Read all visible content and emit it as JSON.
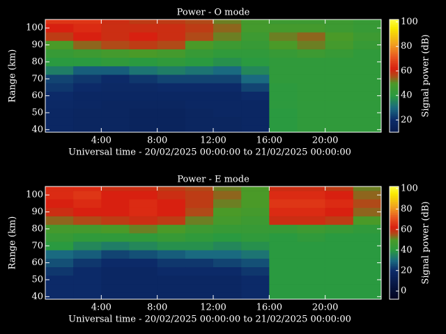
{
  "chart_data": [
    {
      "type": "heatmap",
      "title": "Power - O mode",
      "xlabel": "Universal time - 20/02/2025 00:00:00 to 21/02/2025 00:00:00",
      "ylabel": "Range (km)",
      "colorbar_label": "Signal power (dB)",
      "x_bins": [
        0,
        2,
        4,
        6,
        8,
        10,
        12,
        14,
        16,
        18,
        20,
        22,
        24
      ],
      "y_bins": [
        38.5,
        42.5,
        47.5,
        52.5,
        57.5,
        62.5,
        67.5,
        72.5,
        77.5,
        82.5,
        87.5,
        92.5,
        97.5,
        102.5,
        105
      ],
      "xlim": [
        0,
        24
      ],
      "ylim": [
        38.5,
        105
      ],
      "xticks": [
        {
          "value": 4,
          "label": "4:00"
        },
        {
          "value": 8,
          "label": "8:00"
        },
        {
          "value": 12,
          "label": "12:00"
        },
        {
          "value": 16,
          "label": "16:00"
        },
        {
          "value": 20,
          "label": "20:00"
        }
      ],
      "yticks": [
        40,
        50,
        60,
        70,
        80,
        90,
        100
      ],
      "zlim": [
        10,
        102
      ],
      "zticks": [
        20,
        40,
        60,
        80,
        100
      ],
      "colorscale": [
        [
          -10,
          "#000018"
        ],
        [
          20,
          "#0c2a68"
        ],
        [
          30,
          "#1a6a80"
        ],
        [
          40,
          "#2a9a40"
        ],
        [
          50,
          "#4a9a28"
        ],
        [
          56,
          "#b04a18"
        ],
        [
          62,
          "#d82010"
        ],
        [
          72,
          "#e85820"
        ],
        [
          82,
          "#f0a020"
        ],
        [
          95,
          "#f8e800"
        ],
        [
          102,
          "#ffff40"
        ]
      ],
      "values": [
        [
          18,
          17,
          17,
          16,
          16,
          17,
          17,
          18,
          40,
          42,
          42,
          42
        ],
        [
          18,
          17,
          17,
          16,
          16,
          17,
          17,
          18,
          40,
          42,
          42,
          42
        ],
        [
          18,
          17,
          17,
          16,
          16,
          17,
          18,
          18,
          40,
          42,
          42,
          42
        ],
        [
          19,
          18,
          17,
          17,
          17,
          18,
          18,
          18,
          41,
          42,
          42,
          42
        ],
        [
          20,
          18,
          18,
          18,
          18,
          18,
          18,
          20,
          41,
          42,
          42,
          42
        ],
        [
          22,
          20,
          19,
          19,
          20,
          20,
          20,
          24,
          41,
          42,
          42,
          42
        ],
        [
          24,
          22,
          20,
          22,
          24,
          24,
          24,
          30,
          42,
          42,
          42,
          42
        ],
        [
          34,
          28,
          28,
          32,
          34,
          32,
          30,
          36,
          42,
          42,
          42,
          42
        ],
        [
          40,
          40,
          42,
          40,
          42,
          40,
          38,
          40,
          42,
          42,
          42,
          42
        ],
        [
          44,
          46,
          48,
          50,
          48,
          44,
          42,
          42,
          44,
          46,
          44,
          42
        ],
        [
          50,
          54,
          56,
          58,
          56,
          50,
          46,
          44,
          50,
          52,
          48,
          44
        ],
        [
          58,
          62,
          60,
          62,
          60,
          56,
          52,
          46,
          52,
          54,
          50,
          46
        ],
        [
          62,
          64,
          60,
          60,
          60,
          58,
          54,
          48,
          48,
          48,
          46,
          44
        ],
        [
          66,
          66,
          60,
          58,
          58,
          56,
          52,
          48,
          46,
          46,
          46,
          44
        ]
      ]
    },
    {
      "type": "heatmap",
      "title": "Power - E mode",
      "xlabel": "Universal time - 20/02/2025 00:00:00 to 21/02/2025 00:00:00",
      "ylabel": "Range (km)",
      "colorbar_label": "Signal power (dB)",
      "x_bins": [
        0,
        2,
        4,
        6,
        8,
        10,
        12,
        14,
        16,
        18,
        20,
        22,
        24
      ],
      "y_bins": [
        38.5,
        42.5,
        47.5,
        52.5,
        57.5,
        62.5,
        67.5,
        72.5,
        77.5,
        82.5,
        87.5,
        92.5,
        97.5,
        102.5,
        105
      ],
      "xlim": [
        0,
        24
      ],
      "ylim": [
        38.5,
        105
      ],
      "xticks": [
        {
          "value": 4,
          "label": "4:00"
        },
        {
          "value": 8,
          "label": "8:00"
        },
        {
          "value": 12,
          "label": "12:00"
        },
        {
          "value": 16,
          "label": "16:00"
        },
        {
          "value": 20,
          "label": "20:00"
        }
      ],
      "yticks": [
        40,
        50,
        60,
        70,
        80,
        90,
        100
      ],
      "zlim": [
        -8,
        102
      ],
      "zticks": [
        0,
        20,
        40,
        60,
        80,
        100
      ],
      "colorscale": [
        [
          -10,
          "#000018"
        ],
        [
          20,
          "#0c2a68"
        ],
        [
          30,
          "#1a6a80"
        ],
        [
          40,
          "#2a9a40"
        ],
        [
          50,
          "#4a9a28"
        ],
        [
          56,
          "#b04a18"
        ],
        [
          62,
          "#d82010"
        ],
        [
          72,
          "#e85820"
        ],
        [
          82,
          "#f0a020"
        ],
        [
          95,
          "#f8e800"
        ],
        [
          102,
          "#ffff40"
        ]
      ],
      "values": [
        [
          20,
          20,
          18,
          18,
          18,
          18,
          18,
          20,
          40,
          40,
          40,
          40
        ],
        [
          20,
          20,
          18,
          18,
          18,
          18,
          18,
          20,
          40,
          40,
          40,
          40
        ],
        [
          20,
          20,
          18,
          18,
          18,
          18,
          18,
          20,
          40,
          40,
          40,
          40
        ],
        [
          22,
          20,
          18,
          18,
          20,
          20,
          20,
          22,
          40,
          40,
          40,
          40
        ],
        [
          26,
          22,
          20,
          20,
          22,
          22,
          24,
          26,
          40,
          40,
          40,
          40
        ],
        [
          30,
          28,
          24,
          26,
          28,
          30,
          30,
          32,
          40,
          40,
          40,
          40
        ],
        [
          40,
          36,
          34,
          36,
          38,
          38,
          36,
          38,
          40,
          40,
          40,
          40
        ],
        [
          44,
          42,
          42,
          42,
          44,
          42,
          40,
          42,
          40,
          42,
          40,
          40
        ],
        [
          48,
          48,
          50,
          52,
          50,
          46,
          44,
          44,
          44,
          46,
          44,
          42
        ],
        [
          54,
          56,
          58,
          60,
          58,
          52,
          48,
          46,
          60,
          60,
          58,
          50
        ],
        [
          60,
          62,
          62,
          64,
          62,
          56,
          50,
          48,
          64,
          64,
          62,
          54
        ],
        [
          62,
          64,
          62,
          64,
          62,
          58,
          52,
          50,
          66,
          66,
          64,
          56
        ],
        [
          64,
          66,
          62,
          62,
          60,
          58,
          54,
          50,
          64,
          64,
          62,
          54
        ],
        [
          64,
          64,
          60,
          60,
          58,
          56,
          52,
          50,
          60,
          60,
          58,
          52
        ]
      ]
    }
  ]
}
